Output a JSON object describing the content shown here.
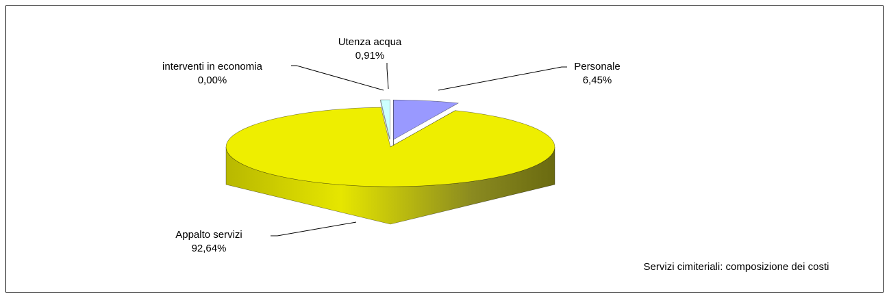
{
  "chart_data": {
    "type": "pie",
    "title": "Servizi cimiteriali: composizione dei costi",
    "categories": [
      "Personale",
      "Appalto servizi",
      "interventi in economia",
      "Utenza acqua"
    ],
    "values": [
      6.45,
      92.64,
      0.0,
      0.91
    ],
    "value_labels": [
      "6,45%",
      "92,64%",
      "0,00%",
      "0,91%"
    ],
    "colors": [
      "#9999ff",
      "#eeee00",
      "#993366",
      "#ccffff"
    ]
  }
}
